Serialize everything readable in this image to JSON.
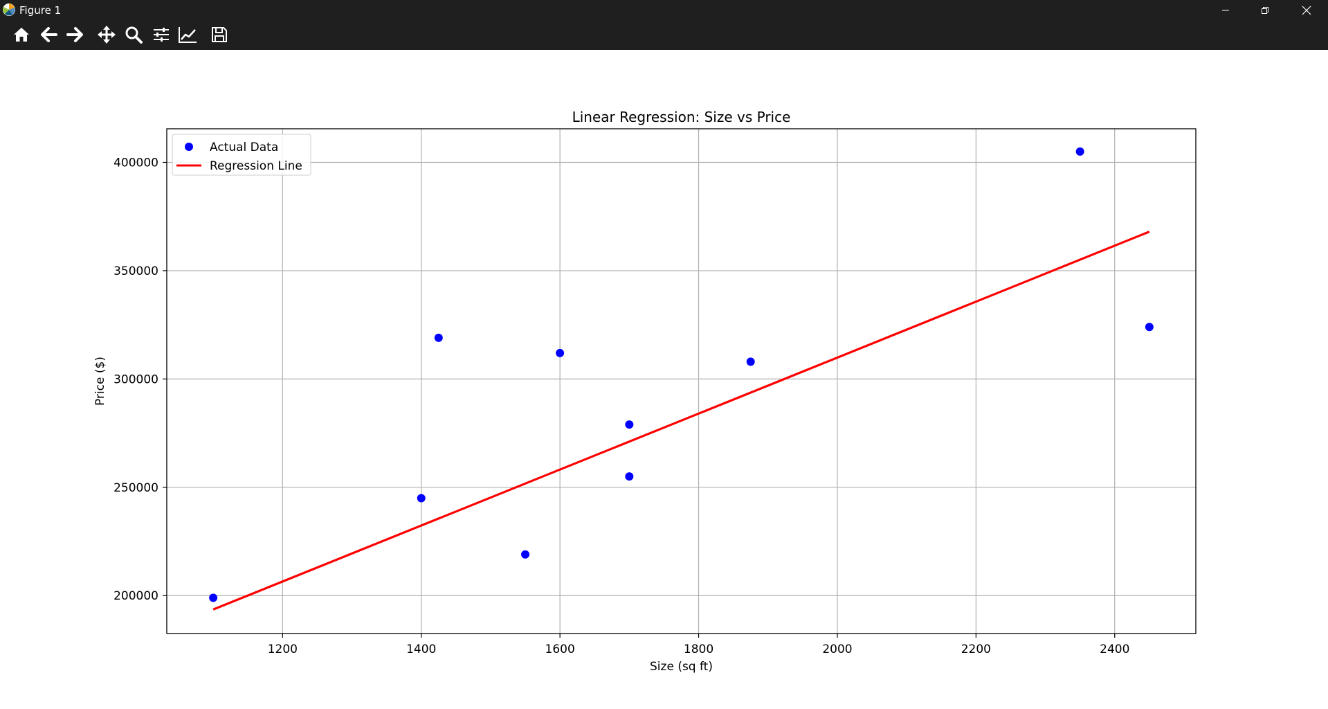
{
  "window": {
    "title": "Figure 1",
    "icon": "matplotlib-logo-icon",
    "controls": [
      "minimize-icon",
      "restore-icon",
      "close-icon"
    ]
  },
  "toolbar": {
    "buttons": [
      {
        "name": "home-button",
        "icon": "home-icon"
      },
      {
        "name": "back-button",
        "icon": "arrow-left-icon"
      },
      {
        "name": "forward-button",
        "icon": "arrow-right-icon"
      },
      {
        "name": "pan-button",
        "icon": "move-icon"
      },
      {
        "name": "zoom-button",
        "icon": "magnifier-icon"
      },
      {
        "name": "subplots-button",
        "icon": "sliders-icon"
      },
      {
        "name": "customize-button",
        "icon": "line-chart-icon"
      },
      {
        "name": "save-button",
        "icon": "floppy-disk-icon"
      }
    ]
  },
  "chart_data": {
    "type": "scatter",
    "title": "Linear Regression: Size vs Price",
    "xlabel": "Size (sq ft)",
    "ylabel": "Price ($)",
    "xlim": [
      1033,
      2517
    ],
    "ylim": [
      182500,
      415500
    ],
    "xticks": [
      1200,
      1400,
      1600,
      1800,
      2000,
      2200,
      2400
    ],
    "yticks": [
      200000,
      250000,
      300000,
      350000,
      400000
    ],
    "grid": true,
    "legend_position": "upper-left",
    "series": [
      {
        "name": "Actual Data",
        "kind": "scatter",
        "color": "#0000ff",
        "points": [
          {
            "x": 1100,
            "y": 199000
          },
          {
            "x": 1400,
            "y": 245000
          },
          {
            "x": 1425,
            "y": 319000
          },
          {
            "x": 1550,
            "y": 219000
          },
          {
            "x": 1600,
            "y": 312000
          },
          {
            "x": 1700,
            "y": 279000
          },
          {
            "x": 1700,
            "y": 255000
          },
          {
            "x": 1875,
            "y": 308000
          },
          {
            "x": 2350,
            "y": 405000
          },
          {
            "x": 2450,
            "y": 324000
          }
        ]
      },
      {
        "name": "Regression Line",
        "kind": "line",
        "color": "#ff0000",
        "points": [
          {
            "x": 1100,
            "y": 193600
          },
          {
            "x": 2450,
            "y": 368000
          }
        ]
      }
    ]
  }
}
